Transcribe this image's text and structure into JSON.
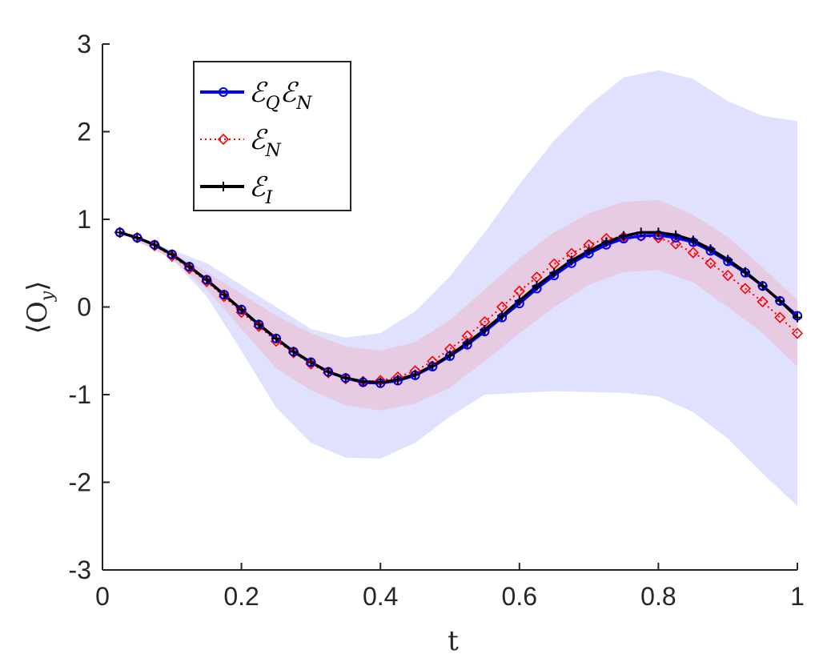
{
  "chart_data": {
    "type": "line",
    "xlabel": "t",
    "ylabel": "⟨O_y⟩",
    "xlim": [
      0,
      1
    ],
    "ylim": [
      -3,
      3
    ],
    "xticks": [
      0,
      0.2,
      0.4,
      0.6,
      0.8,
      1
    ],
    "xtick_labels": [
      "0",
      "0.2",
      "0.4",
      "0.6",
      "0.8",
      "1"
    ],
    "yticks": [
      3,
      2,
      1,
      0,
      -1,
      -2,
      -3
    ],
    "ytick_labels": [
      "3",
      "2",
      "1",
      "0",
      "-1",
      "-2",
      "-3"
    ],
    "legend_position": "top-left",
    "x": [
      0.025,
      0.05,
      0.075,
      0.1,
      0.125,
      0.15,
      0.175,
      0.2,
      0.225,
      0.25,
      0.275,
      0.3,
      0.325,
      0.35,
      0.375,
      0.4,
      0.425,
      0.45,
      0.475,
      0.5,
      0.525,
      0.55,
      0.575,
      0.6,
      0.625,
      0.65,
      0.675,
      0.7,
      0.725,
      0.75,
      0.775,
      0.8,
      0.825,
      0.85,
      0.875,
      0.9,
      0.925,
      0.95,
      0.975,
      1.0
    ],
    "series": [
      {
        "name": "E_Q E_N",
        "legend_main": "ℰ",
        "legend_sub": "Q",
        "legend_main2": "ℰ",
        "legend_sub2": "N",
        "color": "#0000ff",
        "style": "solid",
        "marker": "circle",
        "values": [
          0.85,
          0.79,
          0.71,
          0.6,
          0.46,
          0.31,
          0.14,
          -0.03,
          -0.2,
          -0.36,
          -0.51,
          -0.63,
          -0.74,
          -0.81,
          -0.86,
          -0.87,
          -0.84,
          -0.78,
          -0.68,
          -0.56,
          -0.43,
          -0.28,
          -0.12,
          0.04,
          0.21,
          0.36,
          0.5,
          0.61,
          0.71,
          0.78,
          0.81,
          0.82,
          0.79,
          0.74,
          0.64,
          0.52,
          0.39,
          0.24,
          0.07,
          -0.1
        ]
      },
      {
        "name": "E_N",
        "legend_main": "ℰ",
        "legend_sub": "N",
        "color": "#ff0000",
        "style": "dotted",
        "marker": "diamond",
        "values": [
          0.85,
          0.79,
          0.7,
          0.58,
          0.44,
          0.29,
          0.12,
          -0.06,
          -0.22,
          -0.39,
          -0.52,
          -0.65,
          -0.75,
          -0.82,
          -0.85,
          -0.84,
          -0.8,
          -0.73,
          -0.62,
          -0.48,
          -0.33,
          -0.17,
          0.0,
          0.18,
          0.34,
          0.49,
          0.61,
          0.71,
          0.78,
          0.8,
          0.81,
          0.79,
          0.72,
          0.62,
          0.5,
          0.36,
          0.21,
          0.06,
          -0.12,
          -0.3
        ]
      },
      {
        "name": "E_I",
        "legend_main": "ℰ",
        "legend_sub": "I",
        "color": "#000000",
        "style": "solid",
        "marker": "plus",
        "values": [
          0.85,
          0.79,
          0.71,
          0.6,
          0.46,
          0.31,
          0.14,
          -0.03,
          -0.2,
          -0.36,
          -0.51,
          -0.63,
          -0.74,
          -0.81,
          -0.85,
          -0.86,
          -0.83,
          -0.77,
          -0.67,
          -0.55,
          -0.41,
          -0.26,
          -0.1,
          0.07,
          0.24,
          0.39,
          0.53,
          0.64,
          0.74,
          0.81,
          0.85,
          0.85,
          0.82,
          0.76,
          0.66,
          0.54,
          0.4,
          0.24,
          0.07,
          -0.12
        ]
      }
    ],
    "bands": [
      {
        "name": "E_Q E_N confidence band",
        "color": "#e0e0ff",
        "x": [
          0.025,
          0.1,
          0.15,
          0.2,
          0.25,
          0.3,
          0.35,
          0.4,
          0.45,
          0.5,
          0.55,
          0.6,
          0.65,
          0.7,
          0.75,
          0.8,
          0.85,
          0.9,
          0.95,
          1.0
        ],
        "lower": [
          0.85,
          0.55,
          0.12,
          -0.5,
          -1.15,
          -1.55,
          -1.72,
          -1.73,
          -1.55,
          -1.25,
          -1.0,
          -0.98,
          -0.96,
          -0.97,
          -0.98,
          -1.02,
          -1.2,
          -1.5,
          -1.9,
          -2.27
        ],
        "upper": [
          0.85,
          0.65,
          0.5,
          0.25,
          0.0,
          -0.25,
          -0.35,
          -0.3,
          -0.05,
          0.35,
          0.85,
          1.4,
          1.9,
          2.3,
          2.62,
          2.7,
          2.6,
          2.35,
          2.18,
          2.12
        ]
      },
      {
        "name": "E_N confidence band",
        "color": "#e8c4d8",
        "x": [
          0.025,
          0.1,
          0.15,
          0.2,
          0.25,
          0.3,
          0.35,
          0.4,
          0.45,
          0.5,
          0.55,
          0.6,
          0.65,
          0.7,
          0.75,
          0.8,
          0.85,
          0.9,
          0.95,
          1.0
        ],
        "lower": [
          0.85,
          0.55,
          0.2,
          -0.25,
          -0.7,
          -0.95,
          -1.12,
          -1.18,
          -1.1,
          -0.92,
          -0.62,
          -0.3,
          0.0,
          0.25,
          0.4,
          0.42,
          0.28,
          0.0,
          -0.3,
          -0.68
        ],
        "upper": [
          0.85,
          0.62,
          0.4,
          0.15,
          -0.1,
          -0.3,
          -0.45,
          -0.5,
          -0.4,
          -0.15,
          0.2,
          0.55,
          0.85,
          1.07,
          1.2,
          1.22,
          1.05,
          0.8,
          0.45,
          0.08
        ]
      }
    ]
  }
}
